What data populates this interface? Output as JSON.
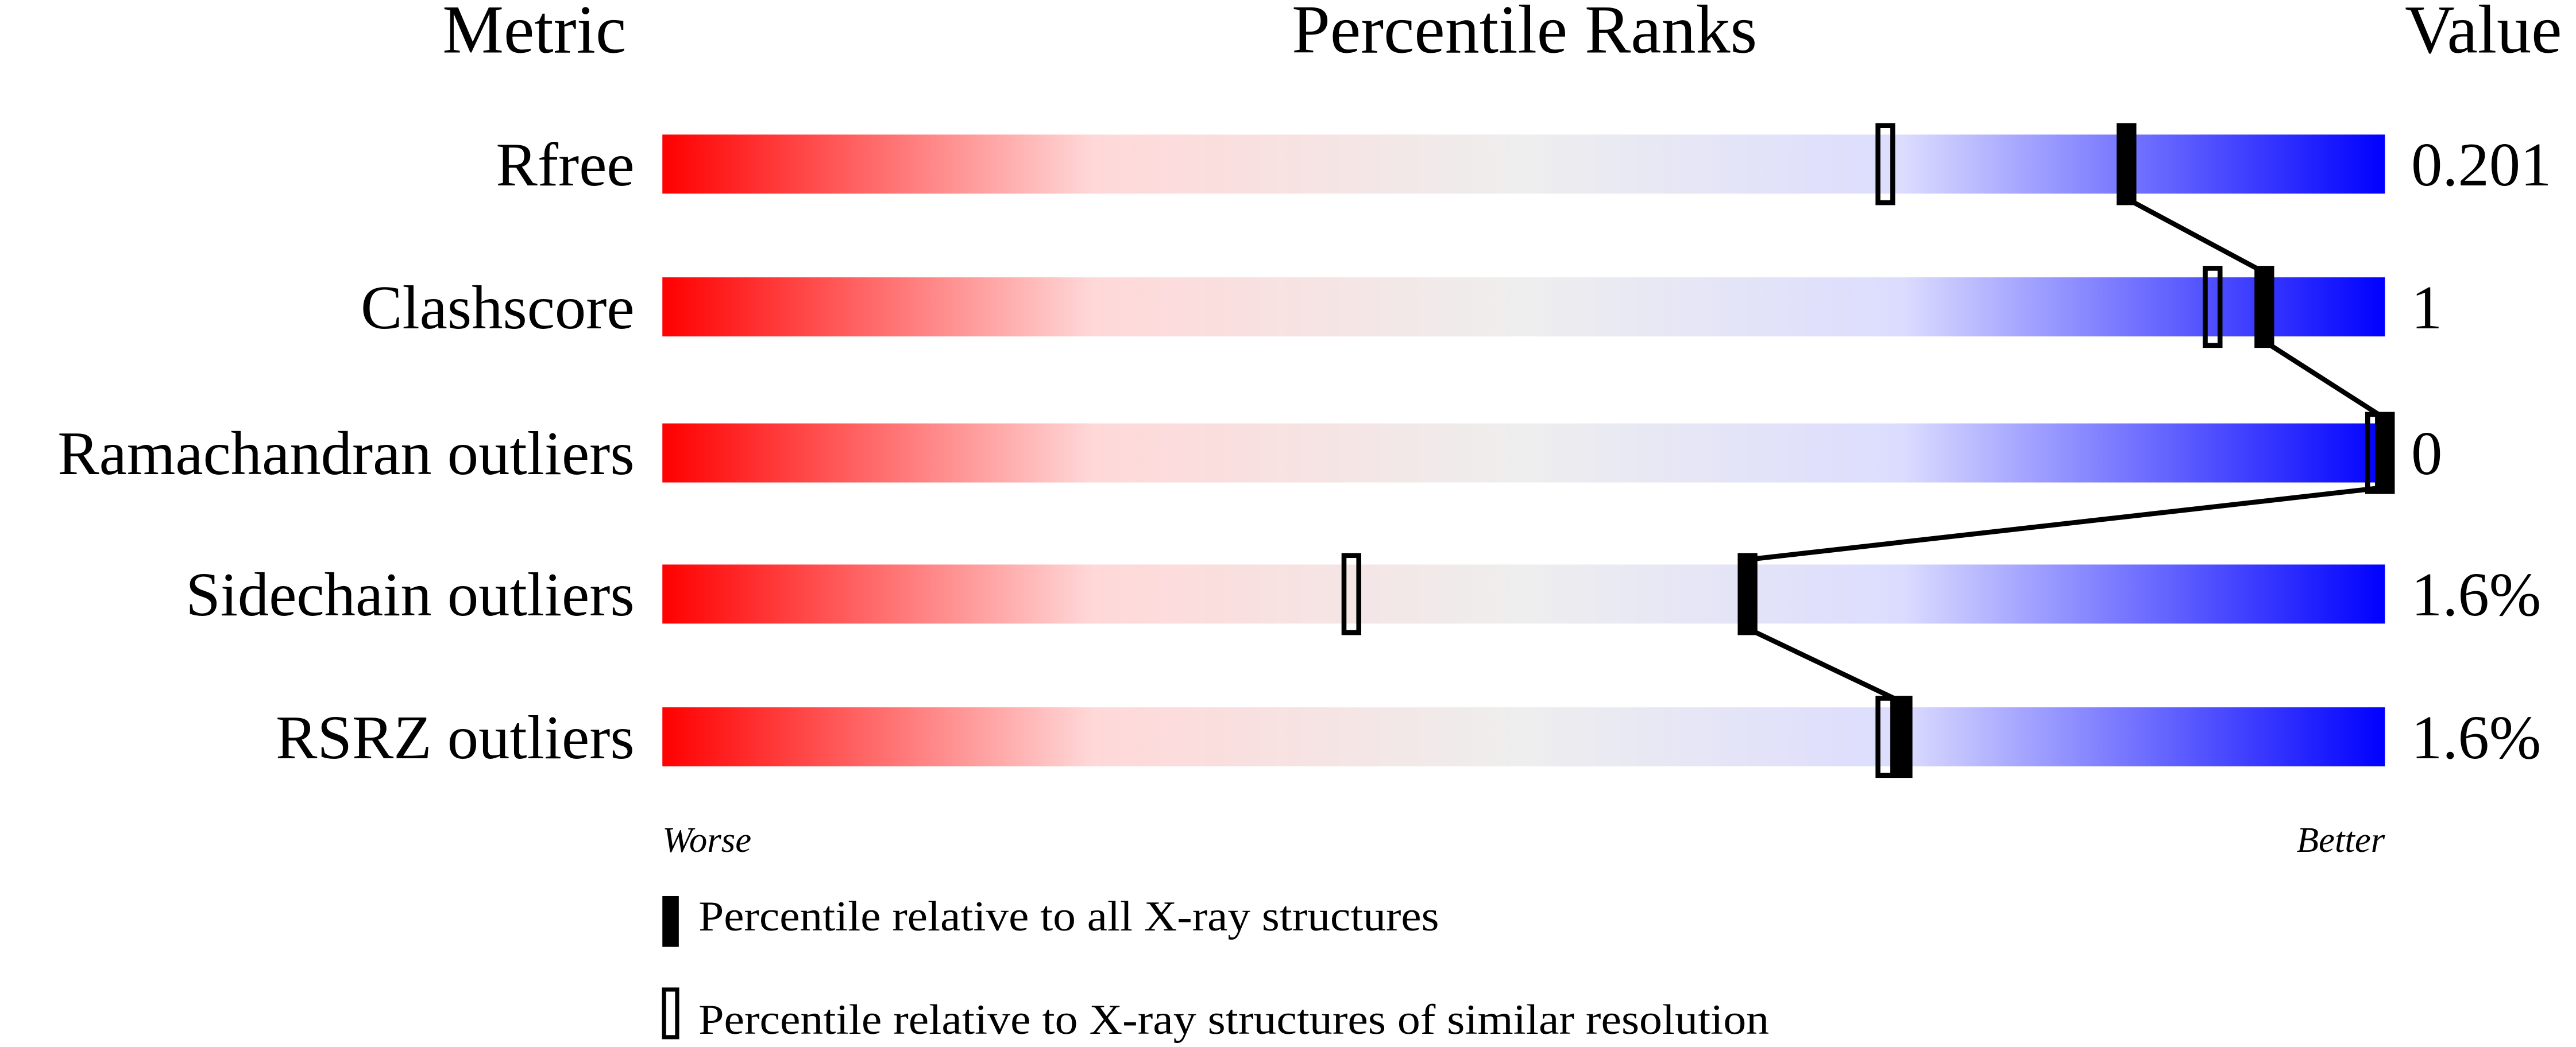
{
  "chart_data": {
    "type": "percentile-slider",
    "headers": {
      "metric": "Metric",
      "ranks": "Percentile Ranks",
      "value": "Value"
    },
    "xlim": [
      0,
      100
    ],
    "axis_labels": {
      "left": "Worse",
      "right": "Better"
    },
    "rows": [
      {
        "metric": "Rfree",
        "value": "0.201",
        "percentile_all": 85,
        "percentile_similar": 71
      },
      {
        "metric": "Clashscore",
        "value": "1",
        "percentile_all": 93,
        "percentile_similar": 90
      },
      {
        "metric": "Ramachandran outliers",
        "value": "0",
        "percentile_all": 100,
        "percentile_similar": 100
      },
      {
        "metric": "Sidechain outliers",
        "value": "1.6%",
        "percentile_all": 63,
        "percentile_similar": 40
      },
      {
        "metric": "RSRZ outliers",
        "value": "1.6%",
        "percentile_all": 72,
        "percentile_similar": 71
      }
    ],
    "legend": [
      {
        "marker": "filled",
        "label": "Percentile relative to all X-ray structures"
      },
      {
        "marker": "open",
        "label": "Percentile relative to X-ray structures of similar resolution"
      }
    ],
    "colors": {
      "worse": "#ff0000",
      "middle": "#eeeeee",
      "better": "#0000ff",
      "marker": "#000000"
    }
  }
}
